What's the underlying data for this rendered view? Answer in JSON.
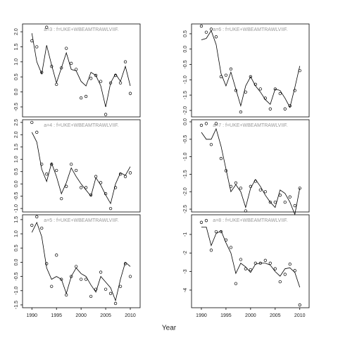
{
  "x_label": "Year",
  "chart_data": [
    {
      "type": "line",
      "title": "a=3  :  f=UKE+WBEAMTRAWLVIIF.",
      "x": [
        1990,
        1991,
        1992,
        1993,
        1994,
        1995,
        1996,
        1997,
        1998,
        1999,
        2000,
        2001,
        2002,
        2003,
        2004,
        2005,
        2006,
        2007,
        2008,
        2009,
        2010
      ],
      "series": [
        {
          "style": "points",
          "color": "#000000",
          "values": [
            1.7,
            1.5,
            0.65,
            2.15,
            0.85,
            0.25,
            0.8,
            1.45,
            0.95,
            0.75,
            -0.2,
            -0.15,
            0.45,
            0.55,
            0.35,
            -0.75,
            0.3,
            0.55,
            0.3,
            1.0,
            -0.05
          ]
        },
        {
          "style": "line",
          "color": "#000000",
          "values": [
            1.95,
            1.0,
            0.6,
            1.55,
            0.9,
            0.3,
            0.8,
            1.3,
            0.75,
            0.7,
            0.35,
            0.2,
            0.65,
            0.55,
            0.2,
            -0.5,
            0.3,
            0.6,
            0.35,
            0.85,
            0.2
          ]
        }
      ],
      "xlim": [
        1988.1,
        2012
      ],
      "ylim": [
        -0.83,
        2.26
      ],
      "yticks": [
        -0.5,
        {
          "value": 0,
          "label": "0.0"
        },
        0.5,
        {
          "value": 1,
          "label": "1.0"
        },
        1.5,
        {
          "value": 2,
          "label": "2.0"
        }
      ]
    },
    {
      "type": "line",
      "title": "a=4  :  f=UKE+WBEAMTRAWLVIIF.",
      "x": [
        1990,
        1991,
        1992,
        1993,
        1994,
        1995,
        1996,
        1997,
        1998,
        1999,
        2000,
        2001,
        2002,
        2003,
        2004,
        2005,
        2006,
        2007,
        2008,
        2009,
        2010
      ],
      "series": [
        {
          "style": "points",
          "color": "#000000",
          "values": [
            2.5,
            2.1,
            0.8,
            0.4,
            0.8,
            0.55,
            -0.6,
            -0.1,
            0.8,
            0.55,
            -0.15,
            -0.15,
            -0.45,
            0.3,
            0.05,
            -0.4,
            -1.0,
            -0.15,
            0.4,
            0.3,
            0.45
          ]
        },
        {
          "style": "line",
          "color": "#000000",
          "values": [
            2.1,
            1.7,
            0.6,
            0.1,
            0.85,
            0.3,
            -0.4,
            0.05,
            0.65,
            0.3,
            0.0,
            -0.25,
            -0.5,
            0.25,
            -0.05,
            -0.45,
            -0.8,
            0.0,
            0.45,
            0.35,
            0.7
          ]
        }
      ],
      "xlim": [
        1988.1,
        2012
      ],
      "ylim": [
        -1.14,
        2.61
      ],
      "yticks": [
        {
          "value": -1,
          "label": "-1.0"
        },
        -0.5,
        {
          "value": 0,
          "label": "0.0"
        },
        0.5,
        {
          "value": 1,
          "label": "1.0"
        },
        1.5,
        {
          "value": 2,
          "label": "2.0"
        },
        2.5
      ]
    },
    {
      "type": "line",
      "title": "a=5  :  f=UKE+WBEAMTRAWLVIIF.",
      "x": [
        1990,
        1991,
        1992,
        1993,
        1994,
        1995,
        1996,
        1997,
        1998,
        1999,
        2000,
        2001,
        2002,
        2003,
        2004,
        2005,
        2006,
        2007,
        2008,
        2009,
        2010
      ],
      "series": [
        {
          "style": "points",
          "color": "#000000",
          "values": [
            1.3,
            1.6,
            1.2,
            -0.05,
            -0.85,
            0.25,
            -0.6,
            -1.15,
            -0.5,
            -0.15,
            -0.6,
            -0.6,
            -1.2,
            -0.95,
            -0.35,
            -0.95,
            -1.1,
            -1.45,
            -0.85,
            -0.05,
            -0.5
          ]
        },
        {
          "style": "line",
          "color": "#000000",
          "values": [
            1.05,
            1.4,
            0.9,
            -0.2,
            -0.6,
            -0.5,
            -0.6,
            -1.1,
            -0.5,
            -0.2,
            -0.4,
            -0.5,
            -0.8,
            -1.05,
            -0.5,
            -0.7,
            -0.9,
            -1.35,
            -0.6,
            0.0,
            -0.15
          ]
        }
      ],
      "xlim": [
        1988.1,
        2012
      ],
      "ylim": [
        -1.6,
        1.67
      ],
      "xticks": [
        1990,
        1995,
        2000,
        2005,
        2010
      ],
      "yticks": [
        -1.5,
        {
          "value": -1,
          "label": "-1.0"
        },
        -0.5,
        {
          "value": 0,
          "label": "0.0"
        },
        0.5,
        {
          "value": 1,
          "label": "1.0"
        },
        1.5
      ]
    },
    {
      "type": "line",
      "title": "a=6  :  f=UKE+WBEAMTRAWLVIIF.",
      "x": [
        1990,
        1991,
        1992,
        1993,
        1994,
        1995,
        1996,
        1997,
        1998,
        1999,
        2000,
        2001,
        2002,
        2003,
        2004,
        2005,
        2006,
        2007,
        2008,
        2009,
        2010
      ],
      "series": [
        {
          "style": "points",
          "color": "#000000",
          "values": [
            0.75,
            0.55,
            0.65,
            0.4,
            -0.9,
            -0.85,
            -0.65,
            -1.35,
            -2.05,
            -1.4,
            -0.9,
            -1.15,
            -1.3,
            -1.6,
            -1.95,
            -1.3,
            -1.45,
            -1.95,
            -1.85,
            -1.35,
            -0.7
          ]
        },
        {
          "style": "line",
          "color": "#000000",
          "values": [
            0.3,
            0.35,
            0.6,
            0.15,
            -0.8,
            -1.2,
            -0.75,
            -1.3,
            -1.85,
            -1.2,
            -0.9,
            -1.2,
            -1.4,
            -1.65,
            -1.8,
            -1.3,
            -1.35,
            -1.6,
            -1.9,
            -1.25,
            -0.55
          ]
        }
      ],
      "xlim": [
        1988,
        2011.9
      ],
      "ylim": [
        -2.21,
        0.82
      ],
      "yticks": [
        {
          "value": -2,
          "label": "-2.0"
        },
        -1.5,
        {
          "value": -1,
          "label": "-1.0"
        },
        -0.5,
        {
          "value": 0,
          "label": "0.0"
        },
        0.5
      ]
    },
    {
      "type": "line",
      "title": "a=7  :  f=UKE+WBEAMTRAWLVIIF.",
      "x": [
        1990,
        1991,
        1992,
        1993,
        1994,
        1995,
        1996,
        1997,
        1998,
        1999,
        2000,
        2001,
        2002,
        2003,
        2004,
        2005,
        2006,
        2007,
        2008,
        2009,
        2010
      ],
      "series": [
        {
          "style": "points",
          "color": "#000000",
          "values": [
            -0.1,
            -0.05,
            -0.65,
            -0.05,
            -1.05,
            -1.4,
            -1.85,
            -1.75,
            -1.9,
            -2.55,
            -1.85,
            -1.7,
            -1.95,
            -2.0,
            -2.3,
            -2.3,
            -2.1,
            -2.3,
            -2.15,
            -2.4,
            -1.9
          ]
        },
        {
          "style": "line",
          "color": "#000000",
          "values": [
            -0.3,
            -0.5,
            -0.5,
            -0.2,
            -0.7,
            -1.35,
            -2.0,
            -1.8,
            -2.0,
            -2.45,
            -1.9,
            -1.65,
            -1.85,
            -2.1,
            -2.3,
            -2.45,
            -1.95,
            -2.05,
            -2.3,
            -2.65,
            -1.9
          ]
        }
      ],
      "xlim": [
        1988,
        2011.9
      ],
      "ylim": [
        -2.58,
        0.06
      ],
      "yticks": [
        -2.5,
        {
          "value": -2,
          "label": "-2.0"
        },
        -1.5,
        {
          "value": -1,
          "label": "-1.0"
        },
        -0.5,
        {
          "value": 0,
          "label": "0.0"
        }
      ]
    },
    {
      "type": "line",
      "title": "a=8  :  f=UKE+WBEAMTRAWLVIIF.",
      "x": [
        1990,
        1991,
        1992,
        1993,
        1994,
        1995,
        1996,
        1997,
        1998,
        1999,
        2000,
        2001,
        2002,
        2003,
        2004,
        2005,
        2006,
        2007,
        2008,
        2009,
        2010
      ],
      "series": [
        {
          "style": "points",
          "color": "#000000",
          "values": [
            -0.35,
            -0.25,
            -1.85,
            -0.85,
            -0.85,
            -1.3,
            -1.7,
            -3.65,
            -2.35,
            -2.85,
            -2.9,
            -2.55,
            -2.55,
            -2.4,
            -2.55,
            -2.85,
            -3.55,
            -3.15,
            -2.6,
            -2.95,
            -4.8
          ]
        },
        {
          "style": "line",
          "color": "#000000",
          "values": [
            -0.6,
            -0.6,
            -1.6,
            -0.95,
            -0.8,
            -1.45,
            -2.0,
            -3.1,
            -2.55,
            -2.75,
            -3.05,
            -2.6,
            -2.55,
            -2.55,
            -2.65,
            -3.0,
            -3.25,
            -2.85,
            -2.8,
            -3.05,
            -3.85
          ]
        }
      ],
      "xlim": [
        1988,
        2011.9
      ],
      "ylim": [
        -4.95,
        0.06
      ],
      "xticks": [
        1990,
        1995,
        2000,
        2005,
        2010
      ],
      "yticks": [
        -4,
        -3,
        -2,
        -1
      ]
    }
  ]
}
